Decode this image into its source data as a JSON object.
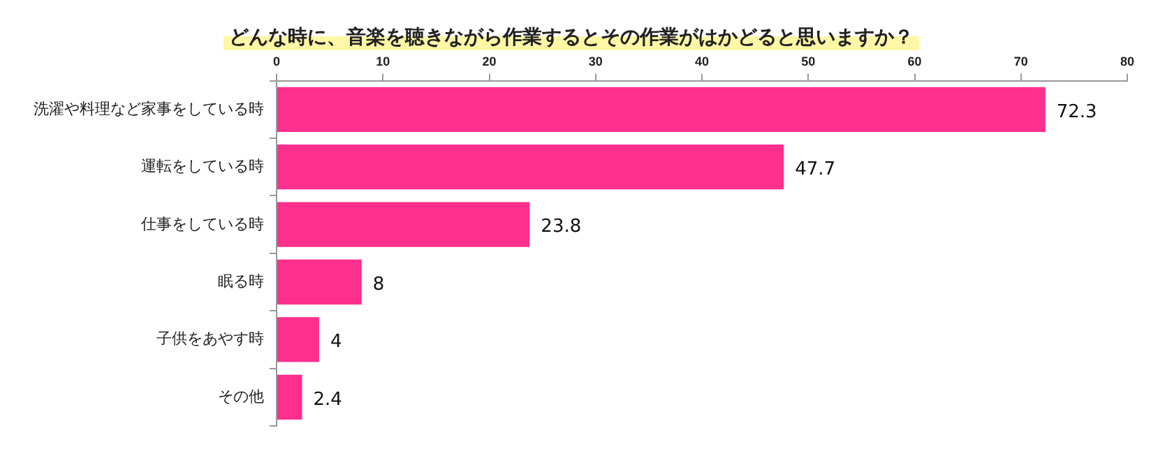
{
  "chart_data": {
    "type": "bar",
    "orientation": "horizontal",
    "title": "どんな時に、音楽を聴きながら作業するとその作業がはかどると思いますか？",
    "categories": [
      "洗濯や料理など家事をしている時",
      "運転をしている時",
      "仕事をしている時",
      "眠る時",
      "子供をあやす時",
      "その他"
    ],
    "values": [
      72.3,
      47.7,
      23.8,
      8,
      4,
      2.4
    ],
    "color": "#fe2f8d",
    "xlim": [
      0,
      80
    ],
    "xticks": [
      0,
      10,
      20,
      30,
      40,
      50,
      60,
      70,
      80
    ],
    "grid": false,
    "legend": false,
    "data_labels": true
  }
}
